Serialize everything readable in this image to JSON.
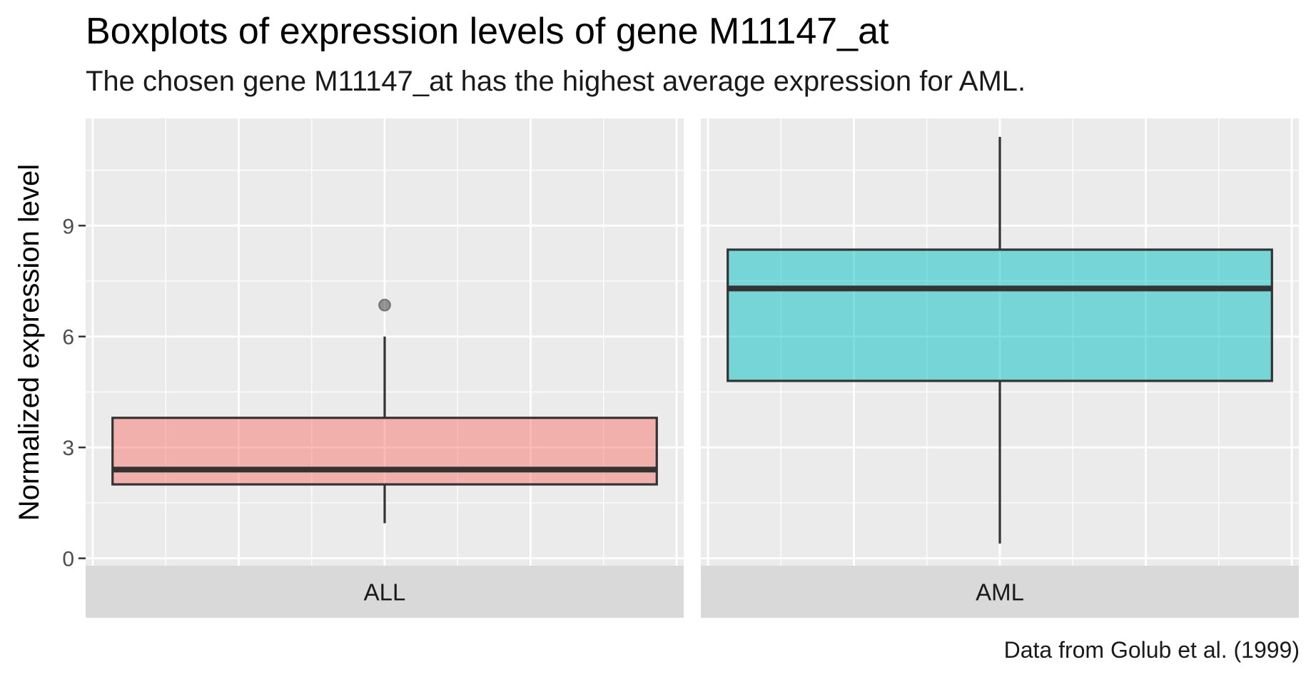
{
  "chart_data": {
    "type": "boxplot",
    "title": "Boxplots of expression levels of gene M11147_at",
    "subtitle": "The chosen gene M11147_at has the highest average expression for AML.",
    "caption": "Data from Golub et al. (1999)",
    "ylabel": "Normalized expression level",
    "xlabel": "",
    "ylim": [
      -0.2,
      11.9
    ],
    "yticks": [
      0,
      3,
      6,
      9
    ],
    "grid": true,
    "legend": "none",
    "panels": [
      {
        "name": "ALL",
        "fill": "#F8766D",
        "whisker_low": 0.95,
        "q1": 2.0,
        "median": 2.4,
        "q3": 3.8,
        "whisker_high": 6.0,
        "outliers": [
          6.85
        ]
      },
      {
        "name": "AML",
        "fill": "#00BFC4",
        "whisker_low": 0.4,
        "q1": 4.8,
        "median": 7.3,
        "q3": 8.35,
        "whisker_high": 11.4,
        "outliers": []
      }
    ]
  }
}
